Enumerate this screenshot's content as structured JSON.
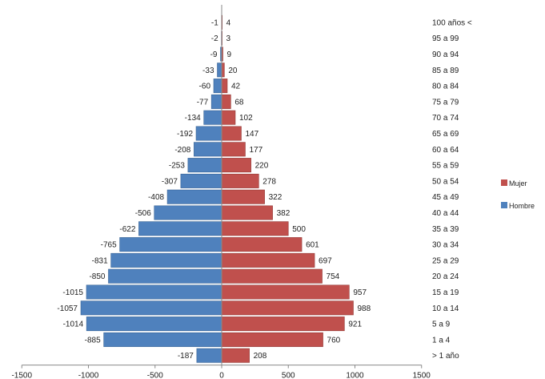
{
  "chart_data": {
    "type": "bar",
    "orientation": "horizontal",
    "categories": [
      "100 años <",
      "95 a 99",
      "90 a 94",
      "85 a 89",
      "80 a 84",
      "75 a 79",
      "70 a 74",
      "65 a 69",
      "60 a 64",
      "55 a 59",
      "50 a 54",
      "45 a 49",
      "40 a 44",
      "35 a 39",
      "30 a 34",
      "25 a 29",
      "20 a 24",
      "15 a 19",
      "10 a 14",
      "5 a 9",
      "1 a 4",
      "> 1 año"
    ],
    "series": [
      {
        "name": "Mujer",
        "color": "#c0504d",
        "values": [
          4,
          3,
          9,
          20,
          42,
          68,
          102,
          147,
          177,
          220,
          278,
          322,
          382,
          500,
          601,
          697,
          754,
          957,
          988,
          921,
          760,
          208
        ]
      },
      {
        "name": "Hombre",
        "color": "#4f81bd",
        "values": [
          -1,
          -2,
          -9,
          -33,
          -60,
          -77,
          -134,
          -192,
          -208,
          -253,
          -307,
          -408,
          -506,
          -622,
          -765,
          -831,
          -850,
          -1015,
          -1057,
          -1014,
          -885,
          -187
        ]
      }
    ],
    "xlim": [
      -1500,
      1500
    ],
    "x_ticks": [
      -1500,
      -1000,
      -500,
      0,
      500,
      1000,
      1500
    ],
    "legend_position": "right",
    "grid": false,
    "title": "",
    "xlabel": "",
    "ylabel": ""
  }
}
